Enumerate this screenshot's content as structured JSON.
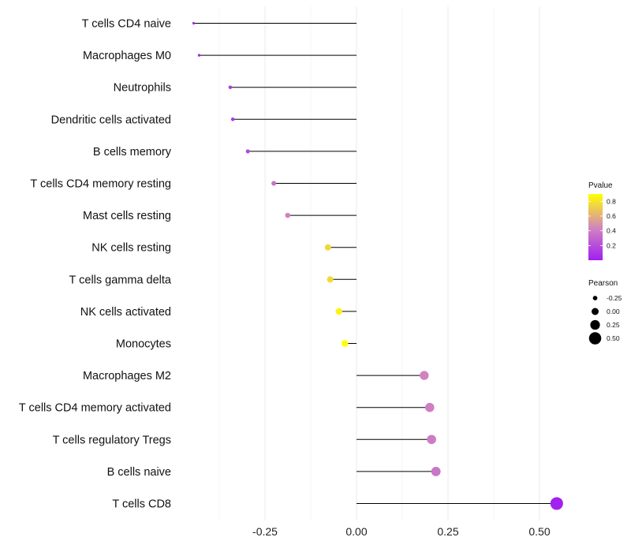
{
  "chart_data": {
    "type": "lollipop",
    "title": "",
    "xlabel": "",
    "ylabel": "",
    "xlim": [
      -0.4,
      0.55
    ],
    "x_ticks": [
      -0.25,
      0.0,
      0.25,
      0.5
    ],
    "x_tick_labels": [
      "-0.25",
      "0.00",
      "0.25",
      "0.50"
    ],
    "grid": "vertical",
    "categories": [
      "T cells CD4 naive",
      "Macrophages M0",
      "Neutrophils",
      "Dendritic cells activated",
      "B cells memory",
      "T cells CD4 memory resting",
      "Mast cells resting",
      "NK cells resting",
      "T cells gamma delta",
      "NK cells activated",
      "Monocytes",
      "Macrophages M2",
      "T cells CD4 memory activated",
      "T cells regulatory  Tregs",
      "B cells naive",
      "T cells CD8"
    ],
    "pearson": [
      -0.445,
      -0.43,
      -0.345,
      -0.338,
      -0.297,
      -0.226,
      -0.188,
      -0.078,
      -0.072,
      -0.048,
      -0.032,
      0.185,
      0.2,
      0.205,
      0.217,
      0.547
    ],
    "pvalue": [
      0.02,
      0.03,
      0.1,
      0.11,
      0.18,
      0.36,
      0.42,
      0.75,
      0.76,
      0.86,
      0.9,
      0.43,
      0.41,
      0.4,
      0.37,
      0.01
    ],
    "legend": {
      "position": "right",
      "color_title": "Pvalue",
      "color_range": [
        0.0,
        0.9
      ],
      "color_low": "#a020f0",
      "color_mid": "#d183c0",
      "color_high": "#ffff00",
      "color_breaks": [
        0.8,
        0.6,
        0.4,
        0.2
      ],
      "color_break_labels": [
        "0.8",
        "0.6",
        "0.4",
        "0.2"
      ],
      "size_title": "Pearson",
      "size_breaks": [
        -0.25,
        0.0,
        0.25,
        0.5
      ],
      "size_break_labels": [
        "-0.25",
        "0.00",
        "0.25",
        "0.50"
      ]
    }
  }
}
